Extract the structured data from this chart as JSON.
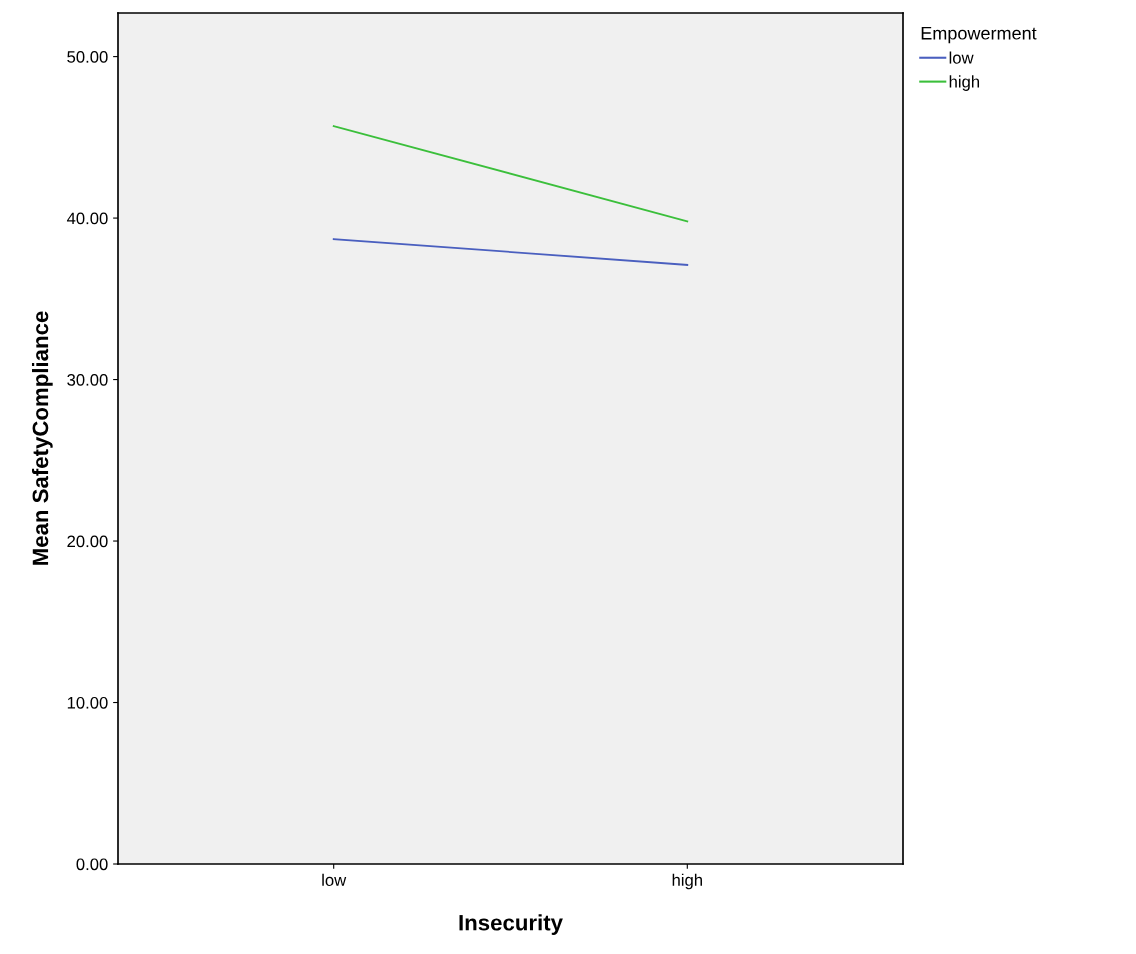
{
  "chart_data": {
    "type": "line",
    "xlabel": "Insecurity",
    "ylabel": "Mean SafetyCompliance",
    "legend_title": "Empowerment",
    "categories": [
      "low",
      "high"
    ],
    "series": [
      {
        "name": "low",
        "color": "#4a5fbf",
        "values": [
          38.7,
          37.1
        ]
      },
      {
        "name": "high",
        "color": "#3bbf3b",
        "values": [
          45.7,
          39.8
        ]
      }
    ],
    "ylim": [
      0,
      52.7
    ],
    "yticks": [
      {
        "value": 0,
        "label": "0.00"
      },
      {
        "value": 10,
        "label": "10.00"
      },
      {
        "value": 20,
        "label": "20.00"
      },
      {
        "value": 30,
        "label": "30.00"
      },
      {
        "value": 40,
        "label": "40.00"
      },
      {
        "value": 50,
        "label": "50.00"
      }
    ],
    "grid": false,
    "legend": "top right",
    "marker": "none",
    "line_style": "solid"
  }
}
